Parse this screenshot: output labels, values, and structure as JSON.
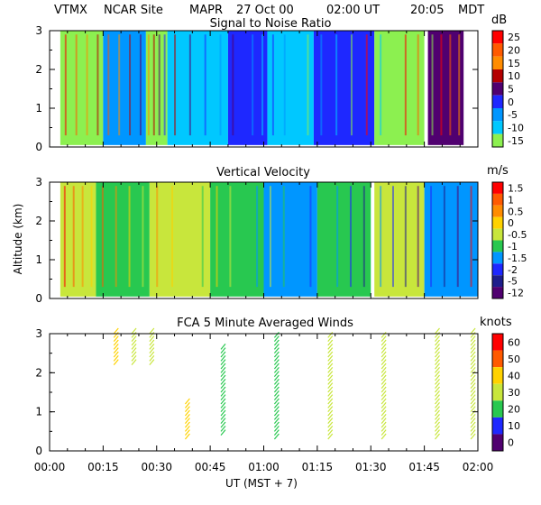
{
  "header": {
    "station": "VTMX",
    "site": "NCAR Site",
    "instrument": "MAPR",
    "date": "27 Oct 00",
    "time_ut": "02:00 UT",
    "time_local": "20:05",
    "tz": "MDT"
  },
  "x_axis": {
    "label": "UT  (MST + 7)",
    "ticks": [
      "00:00",
      "00:15",
      "00:30",
      "00:45",
      "01:00",
      "01:15",
      "01:30",
      "01:45",
      "02:00"
    ],
    "range_minutes": [
      0,
      120
    ]
  },
  "y_axis_label": "Altitude (km)",
  "chart_data": [
    {
      "type": "heatmap",
      "title": "Signal to Noise Ratio",
      "unit": "dB",
      "ylim": [
        0,
        3
      ],
      "yticks": [
        "0",
        "1",
        "2",
        "3"
      ],
      "colorbar_labels": [
        "25",
        "20",
        "15",
        "10",
        "5",
        "0",
        "-5",
        "-10",
        "-15"
      ],
      "colors": [
        "#ff0000",
        "#ff5a00",
        "#ff8c00",
        "#b40000",
        "#500070",
        "#1e28ff",
        "#0096ff",
        "#00c8ff",
        "#8cf050"
      ],
      "columns": [
        {
          "start": 3,
          "end": 15,
          "color": "#8cf050"
        },
        {
          "start": 15,
          "end": 27,
          "color": "#0096ff"
        },
        {
          "start": 27,
          "end": 33,
          "color": "#8cf050"
        },
        {
          "start": 33,
          "end": 50,
          "color": "#00c8ff"
        },
        {
          "start": 50,
          "end": 61,
          "color": "#1e28ff"
        },
        {
          "start": 61,
          "end": 74,
          "color": "#00c8ff"
        },
        {
          "start": 74,
          "end": 91,
          "color": "#1e28ff"
        },
        {
          "start": 91,
          "end": 105,
          "color": "#8cf050"
        },
        {
          "start": 106,
          "end": 116,
          "color": "#500070"
        }
      ]
    },
    {
      "type": "heatmap",
      "title": "Vertical Velocity",
      "unit": "m/s",
      "ylim": [
        0,
        3
      ],
      "yticks": [
        "0",
        "1",
        "2",
        "3"
      ],
      "colorbar_labels": [
        "1.5",
        "1",
        "0.5",
        "0",
        "-0.5",
        "-1",
        "-1.5",
        "-2",
        "-5",
        "-12"
      ],
      "colors": [
        "#ff0000",
        "#ff5a00",
        "#ff8c00",
        "#ffd200",
        "#c8e63c",
        "#28c850",
        "#0096ff",
        "#1e28ff",
        "#1e1e8c",
        "#500070"
      ],
      "columns": [
        {
          "start": 3,
          "end": 13,
          "color": "#c8e63c"
        },
        {
          "start": 13,
          "end": 28,
          "color": "#28c850"
        },
        {
          "start": 28,
          "end": 45,
          "color": "#c8e63c"
        },
        {
          "start": 45,
          "end": 60,
          "color": "#28c850"
        },
        {
          "start": 60,
          "end": 75,
          "color": "#0096ff"
        },
        {
          "start": 75,
          "end": 90,
          "color": "#28c850"
        },
        {
          "start": 91,
          "end": 105,
          "color": "#c8e63c"
        },
        {
          "start": 105,
          "end": 120,
          "color": "#0096ff"
        }
      ]
    },
    {
      "type": "scatter",
      "title": "FCA 5 Minute Averaged Winds",
      "unit": "knots",
      "ylim": [
        0,
        3
      ],
      "yticks": [
        "0",
        "1",
        "2",
        "3"
      ],
      "colorbar_labels": [
        "60",
        "50",
        "40",
        "30",
        "20",
        "10",
        "0"
      ],
      "colors": [
        "#ff0000",
        "#ff5a00",
        "#ff8c00",
        "#ffd200",
        "#c8e63c",
        "#28c850",
        "#0096ff",
        "#1e28ff",
        "#500070"
      ],
      "profiles": [
        {
          "t": 18,
          "z0": 2.2,
          "z1": 3.0,
          "color": "#ffd200"
        },
        {
          "t": 23,
          "z0": 2.2,
          "z1": 3.0,
          "color": "#c8e63c"
        },
        {
          "t": 28,
          "z0": 2.2,
          "z1": 3.0,
          "color": "#c8e63c"
        },
        {
          "t": 38,
          "z0": 0.3,
          "z1": 1.2,
          "color": "#ffd200"
        },
        {
          "t": 48,
          "z0": 0.4,
          "z1": 2.6,
          "color": "#28c850"
        },
        {
          "t": 63,
          "z0": 0.3,
          "z1": 2.9,
          "color": "#28c850"
        },
        {
          "t": 78,
          "z0": 0.3,
          "z1": 2.9,
          "color": "#c8e63c"
        },
        {
          "t": 93,
          "z0": 0.3,
          "z1": 2.9,
          "color": "#c8e63c"
        },
        {
          "t": 108,
          "z0": 0.3,
          "z1": 3.0,
          "color": "#c8e63c"
        },
        {
          "t": 118,
          "z0": 0.3,
          "z1": 3.0,
          "color": "#c8e63c"
        }
      ]
    }
  ]
}
